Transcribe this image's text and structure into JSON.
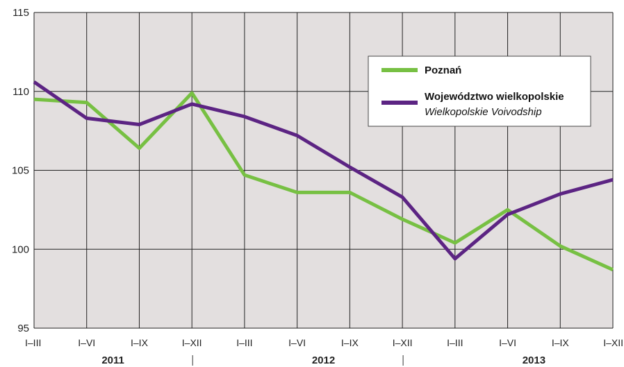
{
  "chart_data": {
    "type": "line",
    "categories": [
      "I–III",
      "I–VI",
      "I–IX",
      "I–XII",
      "I–III",
      "I–VI",
      "I–IX",
      "I–XII",
      "I–III",
      "I–VI",
      "I–IX",
      "I–XII"
    ],
    "years": [
      "2011",
      "2012",
      "2013"
    ],
    "series": [
      {
        "name": "Poznań",
        "color": "#77c043",
        "values": [
          109.5,
          109.3,
          106.4,
          109.9,
          104.7,
          103.6,
          103.6,
          101.9,
          100.4,
          102.5,
          100.2,
          98.7
        ]
      },
      {
        "name": "Województwo wielkopolskie",
        "subname": "Wielkopolskie Voivodship",
        "color": "#5c2483",
        "values": [
          110.6,
          108.3,
          107.9,
          109.2,
          108.4,
          107.2,
          105.2,
          103.3,
          99.4,
          102.2,
          103.5,
          104.4
        ]
      }
    ],
    "ylim": [
      95,
      115
    ],
    "yticks": [
      95,
      100,
      105,
      110,
      115
    ],
    "grid": true,
    "legend_position": "top-right",
    "title": "",
    "xlabel": "",
    "ylabel": ""
  }
}
